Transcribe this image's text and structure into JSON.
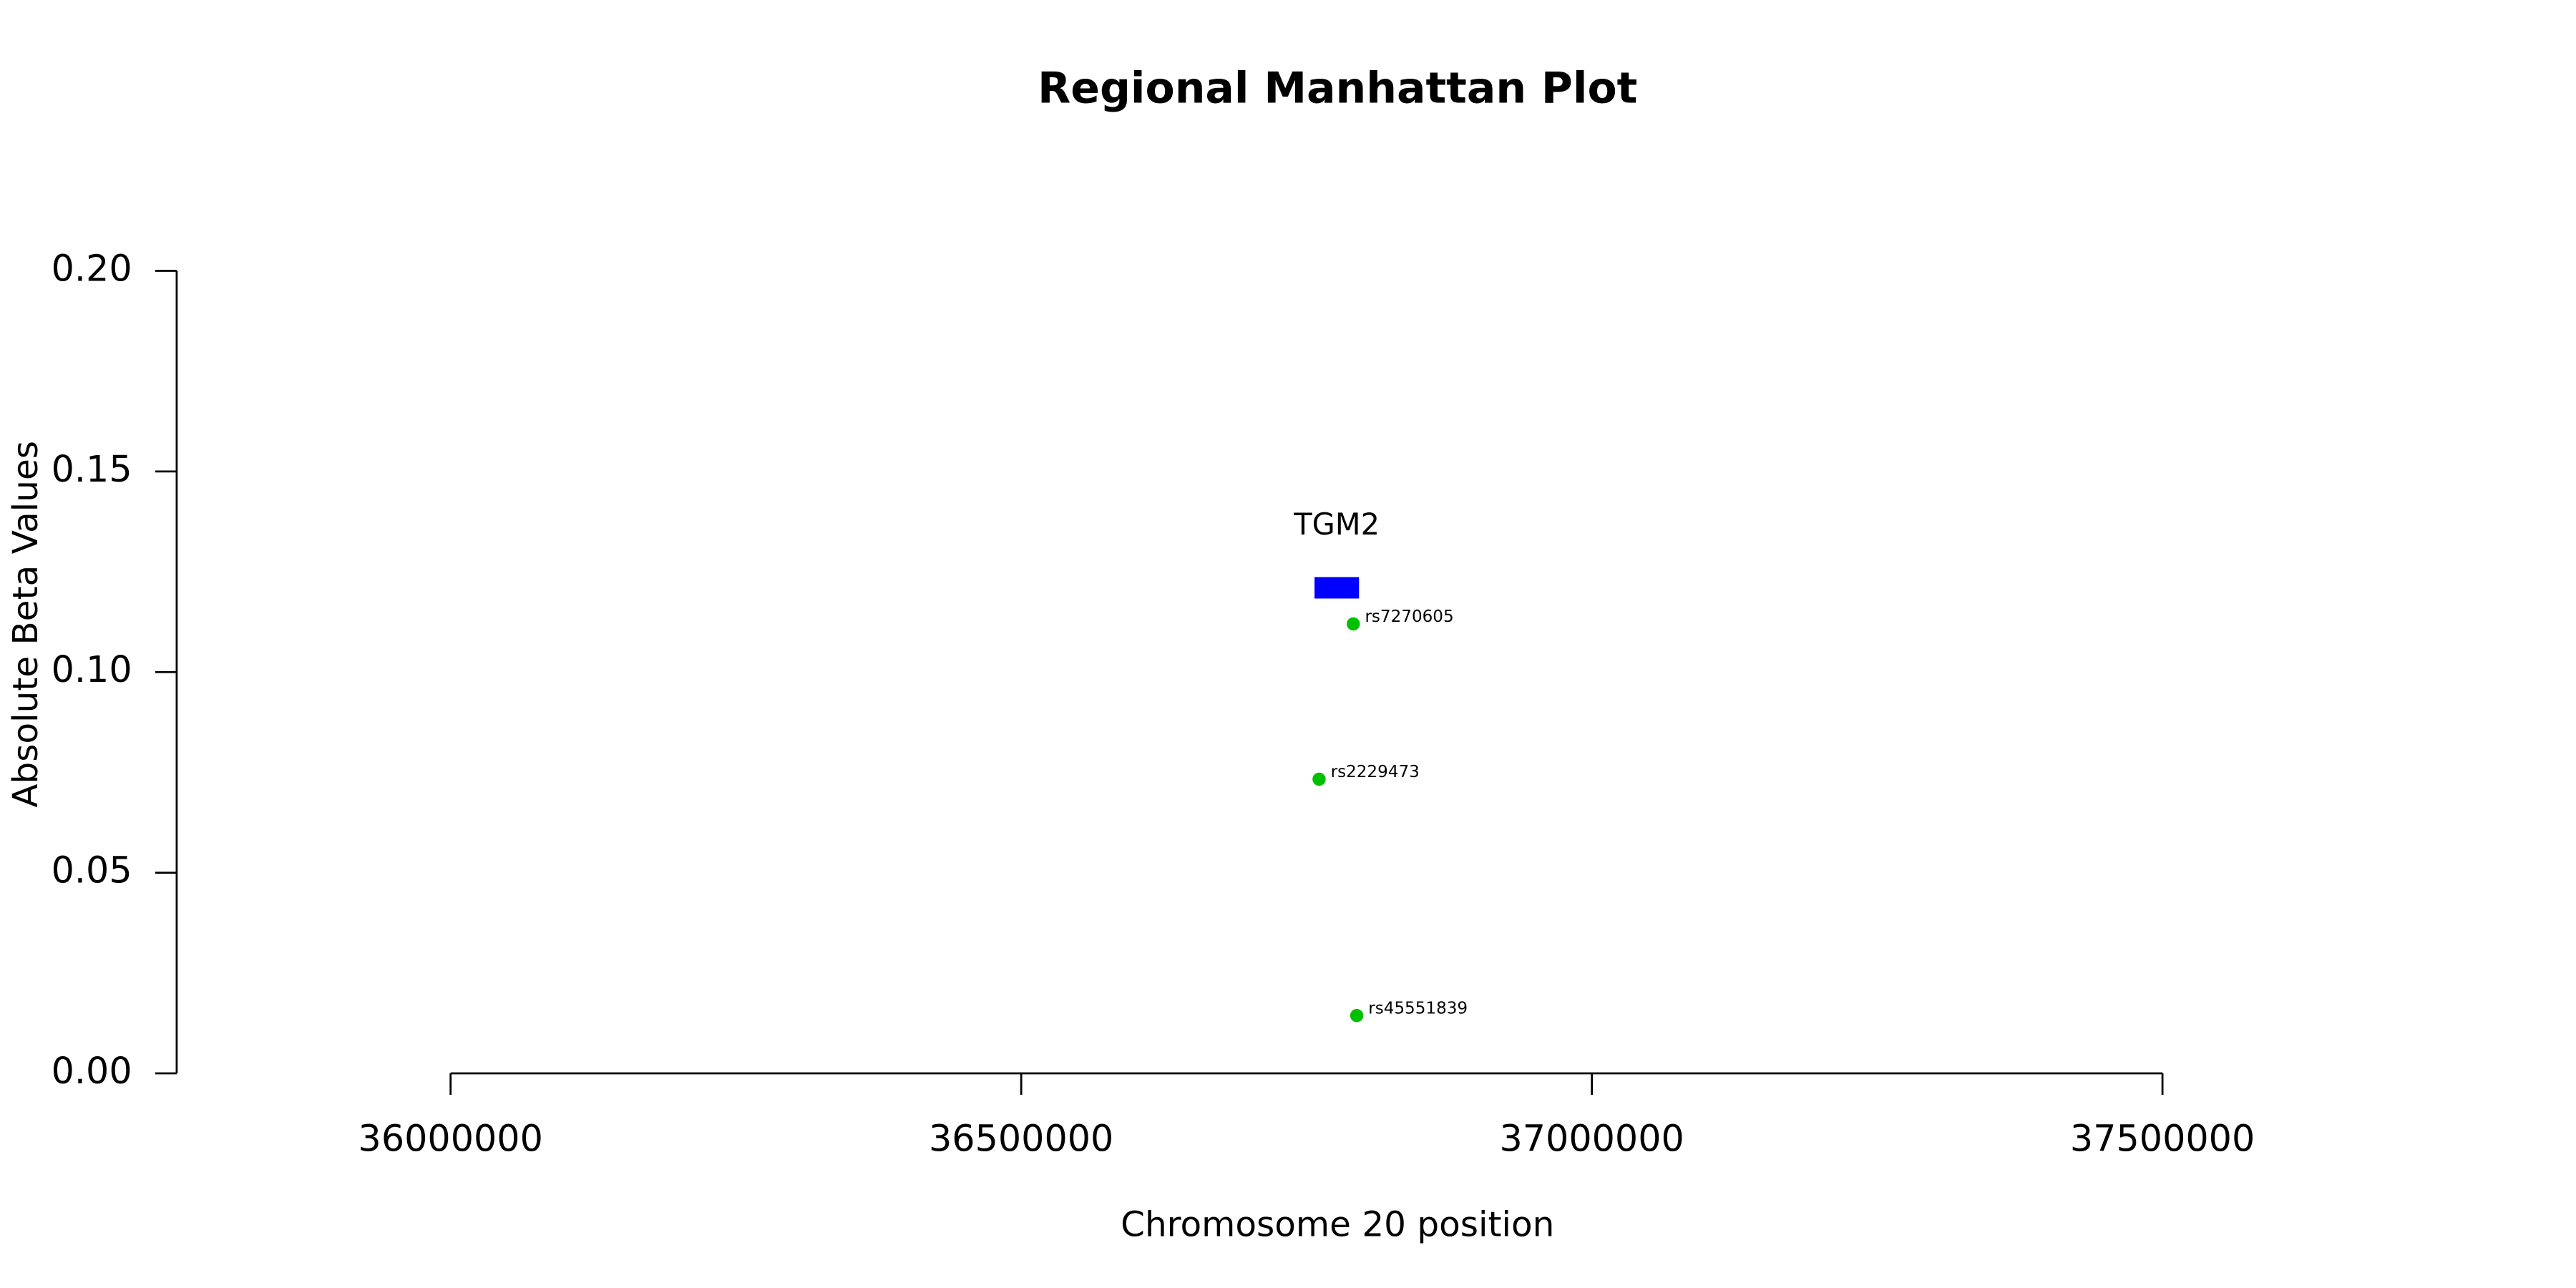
{
  "chart_data": {
    "type": "scatter",
    "title": "Regional Manhattan Plot",
    "x_label": "Chromosome 20 position",
    "y_label": "Absolute Beta Values",
    "x": [
      36791000,
      36761000,
      36794000
    ],
    "values": [
      0.112,
      0.0733,
      0.0144
    ],
    "point_labels": [
      "rs7270605",
      "rs2229473",
      "rs45551839"
    ],
    "color": "#00c000",
    "genes": [
      {
        "name": "TGM2",
        "start": 36757000,
        "end": 36796000,
        "y": 0.121,
        "color": "#0000ff"
      }
    ],
    "xlim": [
      35760000,
      37790000
    ],
    "ylim": [
      0,
      0.2
    ],
    "xticks": [
      36000000,
      36500000,
      37000000,
      37500000
    ],
    "yticks": [
      {
        "value": 0,
        "label": "0.00"
      },
      {
        "value": 0.05,
        "label": "0.05"
      },
      {
        "value": 0.1,
        "label": "0.10"
      },
      {
        "value": 0.15,
        "label": "0.15"
      },
      {
        "value": 0.2,
        "label": "0.20"
      }
    ],
    "grid": false
  }
}
